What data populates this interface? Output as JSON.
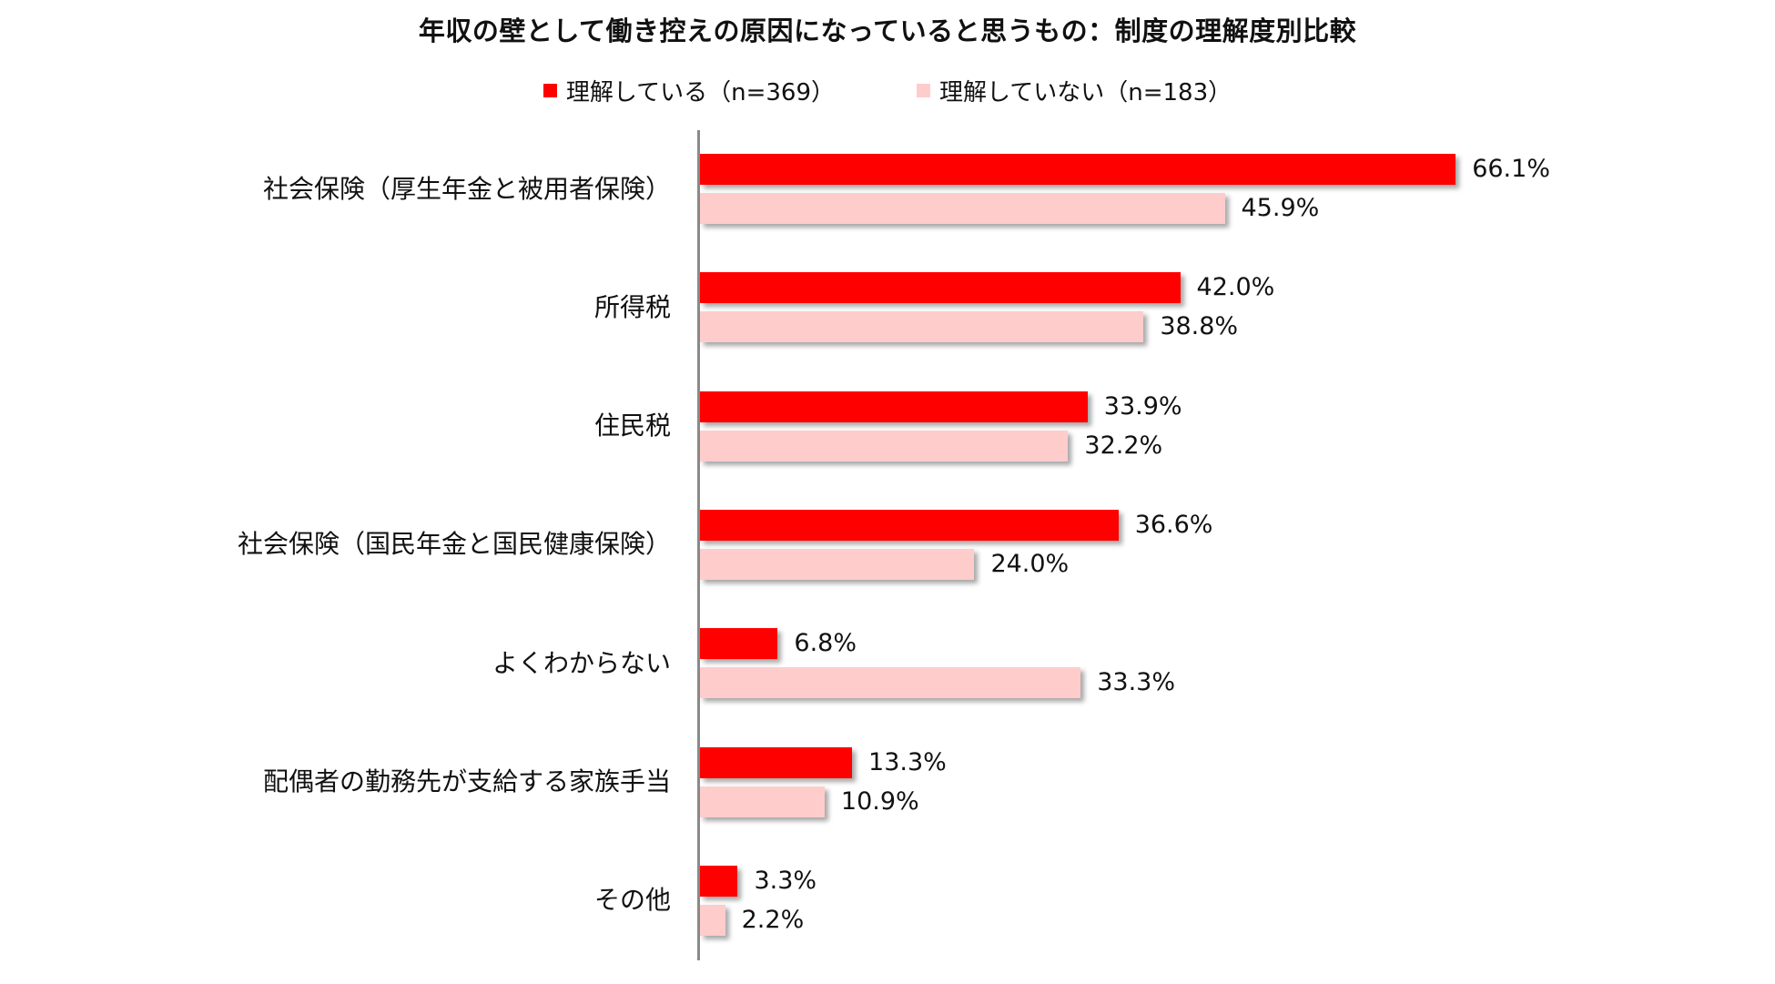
{
  "chart_data": {
    "type": "bar",
    "orientation": "horizontal",
    "title": "年収の壁として働き控えの原因になっていると思うもの：制度の理解度別比較",
    "categories": [
      "社会保険（厚生年金と被用者保険）",
      "所得税",
      "住民税",
      "社会保険（国民年金と国民健康保険）",
      "よくわからない",
      "配偶者の勤務先が支給する家族手当",
      "その他"
    ],
    "series": [
      {
        "name": "理解している（n=369）",
        "color": "#FF0000",
        "values": [
          66.1,
          42.0,
          33.9,
          36.6,
          6.8,
          13.3,
          3.3
        ],
        "labels": [
          "66.1%",
          "42.0%",
          "33.9%",
          "36.6%",
          "6.8%",
          "13.3%",
          "3.3%"
        ]
      },
      {
        "name": "理解していない（n=183）",
        "color": "#FFCCCC",
        "values": [
          45.9,
          38.8,
          32.2,
          24.0,
          33.3,
          10.9,
          2.2
        ],
        "labels": [
          "45.9%",
          "38.8%",
          "32.2%",
          "24.0%",
          "33.3%",
          "10.9%",
          "2.2%"
        ]
      }
    ],
    "xlabel": "",
    "ylabel": "",
    "unit": "%",
    "xlim": [
      0,
      70
    ],
    "grid": false,
    "legend_position": "top"
  },
  "title": "年収の壁として働き控えの原因になっていると思うもの：制度の理解度別比較",
  "legend": [
    {
      "label": "理解している（n=369）",
      "color": "#FF0000"
    },
    {
      "label": "理解していない（n=183）",
      "color": "#FFCCCC"
    }
  ]
}
